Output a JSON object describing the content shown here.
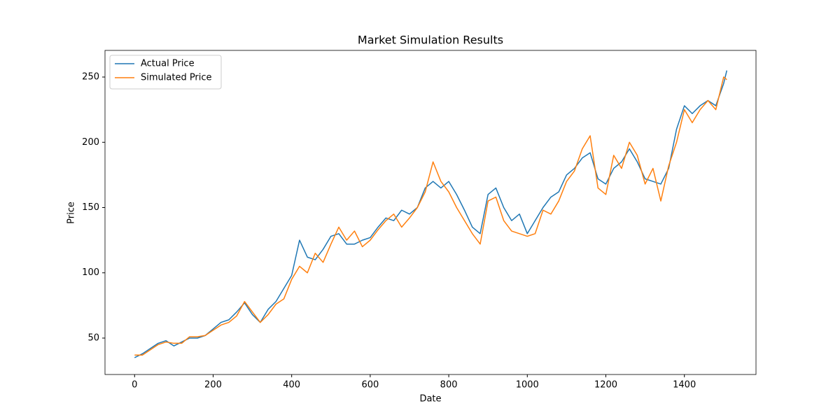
{
  "chart_data": {
    "type": "line",
    "title": "Market Simulation Results",
    "x_label": "Date",
    "y_label": "Price",
    "x": [
      0,
      20,
      40,
      60,
      80,
      100,
      120,
      140,
      160,
      180,
      200,
      220,
      240,
      260,
      280,
      300,
      320,
      340,
      360,
      380,
      400,
      420,
      440,
      460,
      480,
      500,
      520,
      540,
      560,
      580,
      600,
      620,
      640,
      660,
      680,
      700,
      720,
      740,
      760,
      780,
      800,
      820,
      840,
      860,
      880,
      900,
      920,
      940,
      960,
      980,
      1000,
      1020,
      1040,
      1060,
      1080,
      1100,
      1120,
      1140,
      1160,
      1180,
      1200,
      1220,
      1240,
      1260,
      1280,
      1300,
      1320,
      1340,
      1360,
      1380,
      1400,
      1420,
      1440,
      1460,
      1480,
      1500,
      1508
    ],
    "series": [
      {
        "name": "Actual Price",
        "color": "#1f77b4",
        "values": [
          35,
          38,
          42,
          46,
          48,
          44,
          47,
          50,
          50,
          52,
          57,
          62,
          64,
          70,
          77,
          68,
          62,
          72,
          78,
          88,
          98,
          125,
          112,
          110,
          118,
          128,
          130,
          122,
          122,
          125,
          127,
          135,
          142,
          140,
          148,
          145,
          150,
          165,
          170,
          165,
          170,
          160,
          148,
          135,
          130,
          160,
          165,
          150,
          140,
          145,
          130,
          140,
          150,
          158,
          162,
          175,
          180,
          188,
          192,
          172,
          168,
          180,
          185,
          195,
          185,
          172,
          170,
          168,
          180,
          210,
          228,
          222,
          228,
          232,
          228,
          245,
          255
        ]
      },
      {
        "name": "Simulated Price",
        "color": "#ff7f0e",
        "values": [
          37,
          37,
          41,
          45,
          47,
          46,
          46,
          51,
          51,
          52,
          56,
          60,
          62,
          67,
          78,
          70,
          62,
          68,
          76,
          80,
          95,
          105,
          100,
          115,
          108,
          122,
          135,
          125,
          132,
          120,
          125,
          133,
          140,
          145,
          135,
          142,
          150,
          162,
          185,
          170,
          162,
          150,
          140,
          130,
          122,
          155,
          158,
          140,
          132,
          130,
          128,
          130,
          148,
          145,
          155,
          170,
          178,
          195,
          205,
          165,
          160,
          190,
          180,
          200,
          190,
          168,
          180,
          155,
          182,
          200,
          225,
          215,
          225,
          232,
          225,
          250,
          248
        ]
      }
    ],
    "xlim": [
      -75.35,
      1582.35
    ],
    "ylim": [
      22.1,
      270.4
    ],
    "xticks": [
      0,
      200,
      400,
      600,
      800,
      1000,
      1200,
      1400
    ],
    "yticks": [
      50,
      100,
      150,
      200,
      250
    ],
    "legend": "upper left",
    "grid": false
  }
}
